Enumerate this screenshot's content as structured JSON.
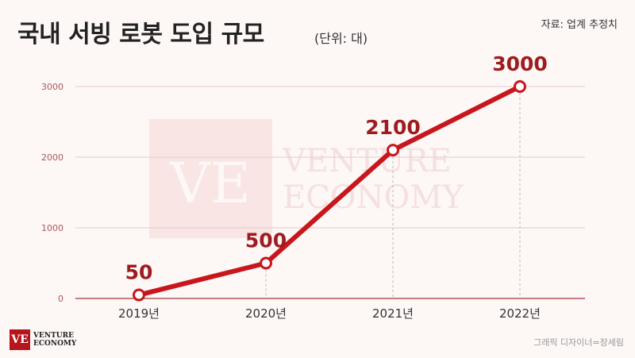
{
  "header": {
    "title": "국내 서빙 로봇 도입 규모",
    "unit": "(단위: 대)",
    "source": "자료: 업계 추정치"
  },
  "footer": {
    "credit": "그래픽 디자이너=장세림",
    "logo_mark": "VE",
    "logo_line1": "VENTURE",
    "logo_line2": "ECONOMY"
  },
  "watermark": {
    "mark": "VE",
    "line1": "VENTURE",
    "line2": "ECONOMY"
  },
  "colors": {
    "line": "#c8161d",
    "label": "#9e1b1f",
    "grid": "#e8c9c9",
    "axis": "#b0575a"
  },
  "chart_data": {
    "type": "line",
    "categories": [
      "2019년",
      "2020년",
      "2021년",
      "2022년"
    ],
    "values": [
      50,
      500,
      2100,
      3000
    ],
    "data_labels": [
      "50",
      "500",
      "2100",
      "3000"
    ],
    "yticks": [
      "0",
      "1000",
      "2000",
      "3000"
    ],
    "ylim": [
      0,
      3000
    ],
    "grid": true,
    "title": "국내 서빙 로봇 도입 규모",
    "xlabel": "",
    "ylabel": "(단위: 대)"
  }
}
